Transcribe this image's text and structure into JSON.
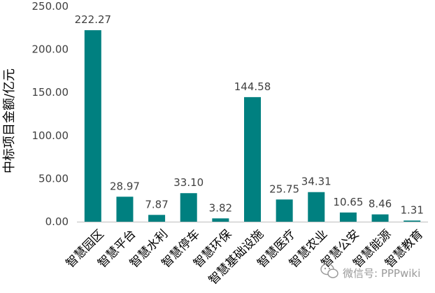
{
  "colors": {
    "bar": "#008080",
    "axis": "#bfbfbf",
    "text": "#404040",
    "watermark": "#9a9a9a"
  },
  "watermark": {
    "text": "微信号: PPPwiki",
    "icon": "wechat-icon"
  },
  "chart_data": {
    "type": "bar",
    "title": "",
    "xlabel": "",
    "ylabel": "中标项目金额/亿元",
    "ylim": [
      0,
      250
    ],
    "yticks": [
      0,
      50,
      100,
      150,
      200,
      250
    ],
    "ytick_labels": [
      "0.00",
      "50.00",
      "100.00",
      "150.00",
      "200.00",
      "250.00"
    ],
    "grid": false,
    "categories": [
      "智慧园区",
      "智慧平台",
      "智慧水利",
      "智慧停车",
      "智慧环保",
      "智慧基础设施",
      "智慧医疗",
      "智慧农业",
      "智慧公安",
      "智慧能源",
      "智慧教育"
    ],
    "values": [
      222.27,
      28.97,
      7.87,
      33.1,
      3.82,
      144.58,
      25.75,
      34.31,
      10.65,
      8.46,
      1.31
    ],
    "data_labels": [
      "222.27",
      "28.97",
      "7.87",
      "33.10",
      "3.82",
      "144.58",
      "25.75",
      "34.31",
      "10.65",
      "8.46",
      "1.31"
    ]
  }
}
